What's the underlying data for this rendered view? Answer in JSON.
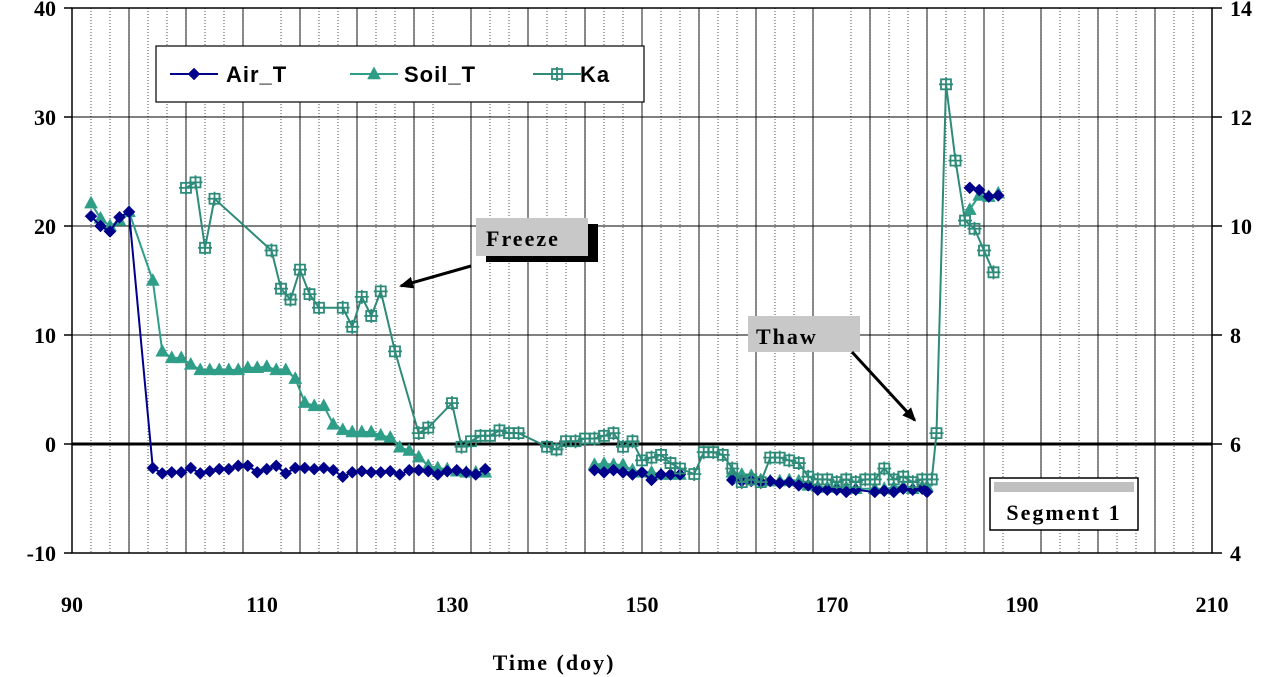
{
  "chart_data": {
    "type": "line",
    "xlabel": "Time (doy)",
    "xlim": [
      90,
      210
    ],
    "xticks": [
      90,
      110,
      130,
      150,
      170,
      190,
      210
    ],
    "ylim_left": [
      -10,
      40
    ],
    "yticks_left": [
      -10,
      0,
      10,
      20,
      30,
      40
    ],
    "ylim_right": [
      4,
      14
    ],
    "yticks_right": [
      4,
      6,
      8,
      10,
      12,
      14
    ],
    "grid": true,
    "legend_position": "top-left",
    "series": [
      {
        "name": "Air_T",
        "axis": "left",
        "color": "#00008B",
        "marker": "diamond",
        "points": [
          [
            92,
            20.9
          ],
          [
            93,
            20
          ],
          [
            94,
            19.5
          ],
          [
            95,
            20.8
          ],
          [
            96,
            21.3
          ],
          [
            98.5,
            -2.2
          ],
          [
            99.5,
            -2.7
          ],
          [
            100.5,
            -2.6
          ],
          [
            101.5,
            -2.6
          ],
          [
            102.5,
            -2.2
          ],
          [
            103.5,
            -2.7
          ],
          [
            104.5,
            -2.5
          ],
          [
            105.5,
            -2.3
          ],
          [
            106.5,
            -2.3
          ],
          [
            107.5,
            -2
          ],
          [
            108.5,
            -2
          ],
          [
            109.5,
            -2.6
          ],
          [
            110.5,
            -2.3
          ],
          [
            111.5,
            -2
          ],
          [
            112.5,
            -2.7
          ],
          [
            113.5,
            -2.2
          ],
          [
            114.5,
            -2.2
          ],
          [
            115.5,
            -2.3
          ],
          [
            116.5,
            -2.2
          ],
          [
            117.5,
            -2.4
          ],
          [
            118.5,
            -3
          ],
          [
            119.5,
            -2.6
          ],
          [
            120.5,
            -2.5
          ],
          [
            121.5,
            -2.6
          ],
          [
            122.5,
            -2.6
          ],
          [
            123.5,
            -2.5
          ],
          [
            124.5,
            -2.8
          ],
          [
            125.5,
            -2.4
          ],
          [
            126.5,
            -2.4
          ],
          [
            127.5,
            -2.5
          ],
          [
            128.5,
            -2.8
          ],
          [
            129.5,
            -2.5
          ],
          [
            130.5,
            -2.4
          ],
          [
            131.5,
            -2.6
          ],
          [
            132.5,
            -2.8
          ],
          [
            133.5,
            -2.3
          ],
          [
            145,
            -2.4
          ],
          [
            146,
            -2.6
          ],
          [
            147,
            -2.4
          ],
          [
            148,
            -2.6
          ],
          [
            149,
            -2.8
          ],
          [
            150,
            -2.6
          ],
          [
            151,
            -3.3
          ],
          [
            152,
            -2.8
          ],
          [
            153,
            -2.8
          ],
          [
            154,
            -2.8
          ],
          [
            159.5,
            -3.3
          ],
          [
            160.5,
            -3.4
          ],
          [
            161.5,
            -3.4
          ],
          [
            162.5,
            -3.5
          ],
          [
            163.5,
            -3.4
          ],
          [
            164.5,
            -3.6
          ],
          [
            165.5,
            -3.5
          ],
          [
            166.5,
            -3.8
          ],
          [
            167.5,
            -3.8
          ],
          [
            168.5,
            -4.2
          ],
          [
            169.5,
            -4.2
          ],
          [
            170.5,
            -4.2
          ],
          [
            171.5,
            -4.4
          ],
          [
            172.5,
            -4.2
          ],
          [
            174.5,
            -4.4
          ],
          [
            175.5,
            -4.3
          ],
          [
            176.5,
            -4.4
          ],
          [
            177.5,
            -4.1
          ],
          [
            178.5,
            -4.2
          ],
          [
            179.5,
            -4.1
          ],
          [
            180,
            -4.4
          ],
          [
            184.5,
            23.5
          ],
          [
            185.5,
            23.3
          ],
          [
            186.5,
            22.7
          ],
          [
            187.5,
            22.8
          ]
        ]
      },
      {
        "name": "Soil_T",
        "axis": "left",
        "color": "#2E9E88",
        "marker": "triangle",
        "points": [
          [
            92,
            22.1
          ],
          [
            93,
            20.7
          ],
          [
            94,
            20
          ],
          [
            95,
            20.5
          ],
          [
            96,
            21.3
          ],
          [
            98.5,
            15
          ],
          [
            99.5,
            8.5
          ],
          [
            100.5,
            7.9
          ],
          [
            101.5,
            7.9
          ],
          [
            102.5,
            7.3
          ],
          [
            103.5,
            6.8
          ],
          [
            104.5,
            6.8
          ],
          [
            105.5,
            6.8
          ],
          [
            106.5,
            6.8
          ],
          [
            107.5,
            6.8
          ],
          [
            108.5,
            7
          ],
          [
            109.5,
            7
          ],
          [
            110.5,
            7.1
          ],
          [
            111.5,
            6.8
          ],
          [
            112.5,
            6.8
          ],
          [
            113.5,
            6
          ],
          [
            114.5,
            3.8
          ],
          [
            115.5,
            3.5
          ],
          [
            116.5,
            3.5
          ],
          [
            117.5,
            1.8
          ],
          [
            118.5,
            1.3
          ],
          [
            119.5,
            1.1
          ],
          [
            120.5,
            1.1
          ],
          [
            121.5,
            1.1
          ],
          [
            122.5,
            0.8
          ],
          [
            123.5,
            0.6
          ],
          [
            124.5,
            -0.3
          ],
          [
            125.5,
            -0.6
          ],
          [
            126.5,
            -1.2
          ],
          [
            127.5,
            -2
          ],
          [
            128.5,
            -2.2
          ],
          [
            129.5,
            -2.3
          ],
          [
            130.5,
            -2.5
          ],
          [
            131.5,
            -2.6
          ],
          [
            132.5,
            -2.6
          ],
          [
            133.5,
            -2.6
          ],
          [
            145,
            -1.9
          ],
          [
            146,
            -1.8
          ],
          [
            147,
            -1.9
          ],
          [
            148,
            -1.9
          ],
          [
            149,
            -2.4
          ],
          [
            150,
            -2.6
          ],
          [
            151,
            -2.6
          ],
          [
            152,
            -2.8
          ],
          [
            153,
            -2.8
          ],
          [
            154,
            -2.8
          ],
          [
            159.5,
            -2.6
          ],
          [
            160.5,
            -2.8
          ],
          [
            161.5,
            -2.9
          ],
          [
            162.5,
            -3.3
          ],
          [
            163.5,
            -3.4
          ],
          [
            164.5,
            -3.4
          ],
          [
            165.5,
            -3.3
          ],
          [
            166.5,
            -3.4
          ],
          [
            167.5,
            -3.8
          ],
          [
            168.5,
            -3.9
          ],
          [
            169.5,
            -4
          ],
          [
            170.5,
            -3.9
          ],
          [
            171.5,
            -4
          ],
          [
            172.5,
            -4.1
          ],
          [
            174.5,
            -4.1
          ],
          [
            175.5,
            -4.1
          ],
          [
            176.5,
            -4
          ],
          [
            177.5,
            -3.9
          ],
          [
            178.5,
            -4.1
          ],
          [
            179.5,
            -3.9
          ],
          [
            180,
            -3.9
          ],
          [
            184.5,
            21.5
          ],
          [
            185.5,
            22.8
          ],
          [
            186.5,
            22.7
          ],
          [
            187.5,
            23
          ]
        ]
      },
      {
        "name": "Ka",
        "axis": "right",
        "color": "#2E8B7A",
        "marker": "plus-square",
        "segments": [
          [
            [
              102,
              10.7
            ],
            [
              103,
              10.8
            ],
            [
              104,
              9.6
            ],
            [
              105,
              10.5
            ],
            [
              111,
              9.55
            ],
            [
              112,
              8.85
            ],
            [
              113,
              8.65
            ],
            [
              114,
              9.2
            ],
            [
              115,
              8.75
            ],
            [
              116,
              8.5
            ],
            [
              118.5,
              8.5
            ],
            [
              119.5,
              8.15
            ],
            [
              120.5,
              8.7
            ],
            [
              121.5,
              8.35
            ],
            [
              122.5,
              8.8
            ],
            [
              124,
              7.7
            ],
            [
              126.5,
              6.2
            ],
            [
              127.5,
              6.3
            ],
            [
              130,
              6.75
            ],
            [
              131,
              5.95
            ],
            [
              132,
              6.05
            ],
            [
              133,
              6.15
            ],
            [
              134,
              6.15
            ],
            [
              135,
              6.25
            ],
            [
              136,
              6.2
            ],
            [
              137,
              6.2
            ],
            [
              140,
              5.95
            ],
            [
              141,
              5.9
            ],
            [
              142,
              6.05
            ],
            [
              143,
              6.05
            ],
            [
              144,
              6.1
            ],
            [
              145,
              6.1
            ],
            [
              146,
              6.15
            ],
            [
              147,
              6.2
            ],
            [
              148,
              5.95
            ],
            [
              149,
              6.05
            ],
            [
              150,
              5.7
            ],
            [
              151,
              5.75
            ],
            [
              152,
              5.8
            ],
            [
              153,
              5.65
            ],
            [
              154,
              5.55
            ],
            [
              155.5,
              5.45
            ],
            [
              156.5,
              5.85
            ],
            [
              157.5,
              5.85
            ],
            [
              158.5,
              5.8
            ],
            [
              159.5,
              5.55
            ],
            [
              160.5,
              5.3
            ],
            [
              161.5,
              5.35
            ],
            [
              162.5,
              5.3
            ],
            [
              163.5,
              5.75
            ],
            [
              164.5,
              5.75
            ],
            [
              165.5,
              5.7
            ],
            [
              166.5,
              5.65
            ],
            [
              167.5,
              5.4
            ],
            [
              168.5,
              5.35
            ],
            [
              169.5,
              5.35
            ],
            [
              170.5,
              5.3
            ],
            [
              171.5,
              5.35
            ],
            [
              172.5,
              5.3
            ],
            [
              173.5,
              5.35
            ],
            [
              174.5,
              5.35
            ],
            [
              175.5,
              5.55
            ],
            [
              176.5,
              5.35
            ],
            [
              177.5,
              5.4
            ],
            [
              178.5,
              5.3
            ],
            [
              179.5,
              5.35
            ],
            [
              180.5,
              5.35
            ],
            [
              181,
              6.2
            ],
            [
              182,
              12.6
            ],
            [
              183,
              11.2
            ],
            [
              184,
              10.1
            ],
            [
              185,
              9.95
            ],
            [
              186,
              9.55
            ],
            [
              187,
              9.15
            ]
          ]
        ]
      }
    ],
    "annotations": [
      {
        "text": "Freeze",
        "x": 133,
        "y": 22,
        "arrow_to": [
          124,
          14.5
        ]
      },
      {
        "text": "Thaw",
        "x": 162,
        "y": 12,
        "arrow_to": [
          178.5,
          2
        ]
      },
      {
        "text": "Segment 1",
        "x": 195,
        "y": -6
      }
    ]
  }
}
